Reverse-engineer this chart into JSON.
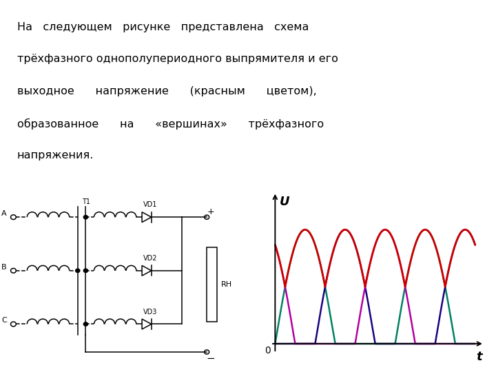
{
  "background_color": "#ffffff",
  "text_color": "#000000",
  "text_fontsize": 11.5,
  "text_lines": [
    "На   следующем   рисунке   представлена   схема",
    "трёхфазного однополупериодного выпрямителя и его",
    "выходное      напряжение      (красным      цветом),",
    "образованное      на      «вершинах»      трёхфазного",
    "напряжения."
  ],
  "phase_colors": [
    "#008060",
    "#1a0080",
    "#b000a0"
  ],
  "rectified_color": "#cc0000",
  "label_U": "U",
  "label_t": "t",
  "label_0": "0",
  "phase_labels": [
    "A",
    "B",
    "C"
  ],
  "diode_labels": [
    "VD1",
    "VD2",
    "VD3"
  ],
  "transformer_label": "T1",
  "load_label": "RH"
}
